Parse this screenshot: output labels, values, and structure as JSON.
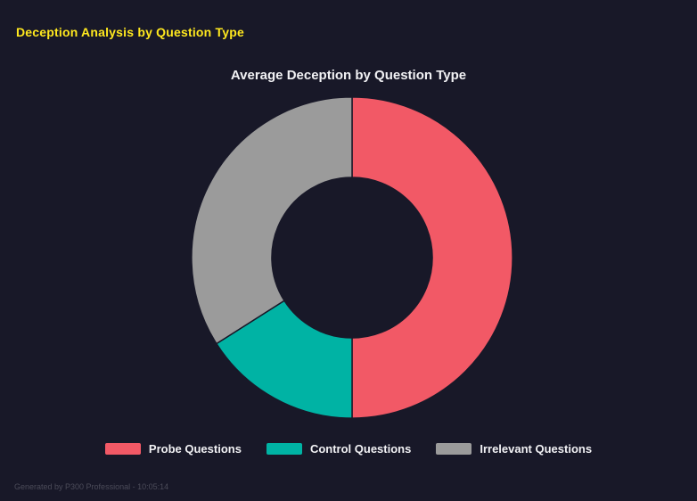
{
  "page": {
    "header": "Deception Analysis by Question Type",
    "footer": "Generated by P300 Professional - 10:05:14",
    "background_color": "#181828",
    "header_color": "#ffe81e"
  },
  "chart_data": {
    "type": "pie",
    "subtype": "donut",
    "title": "Average Deception by Question Type",
    "categories": [
      "Probe Questions",
      "Control Questions",
      "Irrelevant Questions"
    ],
    "values": [
      50,
      16,
      34
    ],
    "unit": "percent_of_ring",
    "colors": [
      "#f25966",
      "#00b3a4",
      "#9b9b9b"
    ],
    "inner_radius_ratio": 0.5,
    "start_angle_deg_from_top": 0,
    "direction": "clockwise",
    "legend_position": "bottom",
    "grid": false
  }
}
